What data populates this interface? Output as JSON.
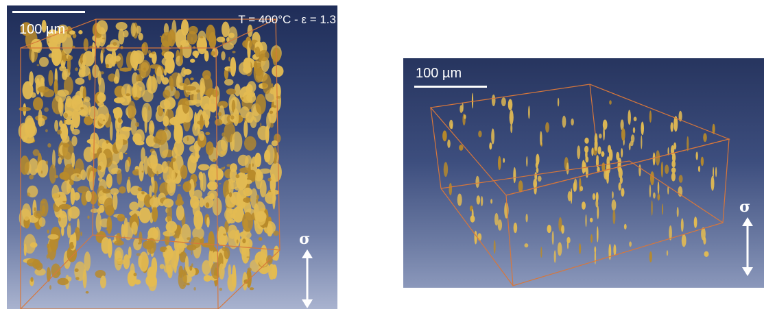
{
  "panels": [
    {
      "scale_label": "100 µm",
      "condition": "T = 400°C - ε = 1.3",
      "stress_symbol": "σ"
    },
    {
      "scale_label": "100 µm",
      "stress_symbol": "σ"
    }
  ],
  "colors": {
    "box_edge": "#d8773a",
    "feature": "#e3bb52",
    "feature_dark": "#b88a2a",
    "arrow": "#ffffff"
  }
}
